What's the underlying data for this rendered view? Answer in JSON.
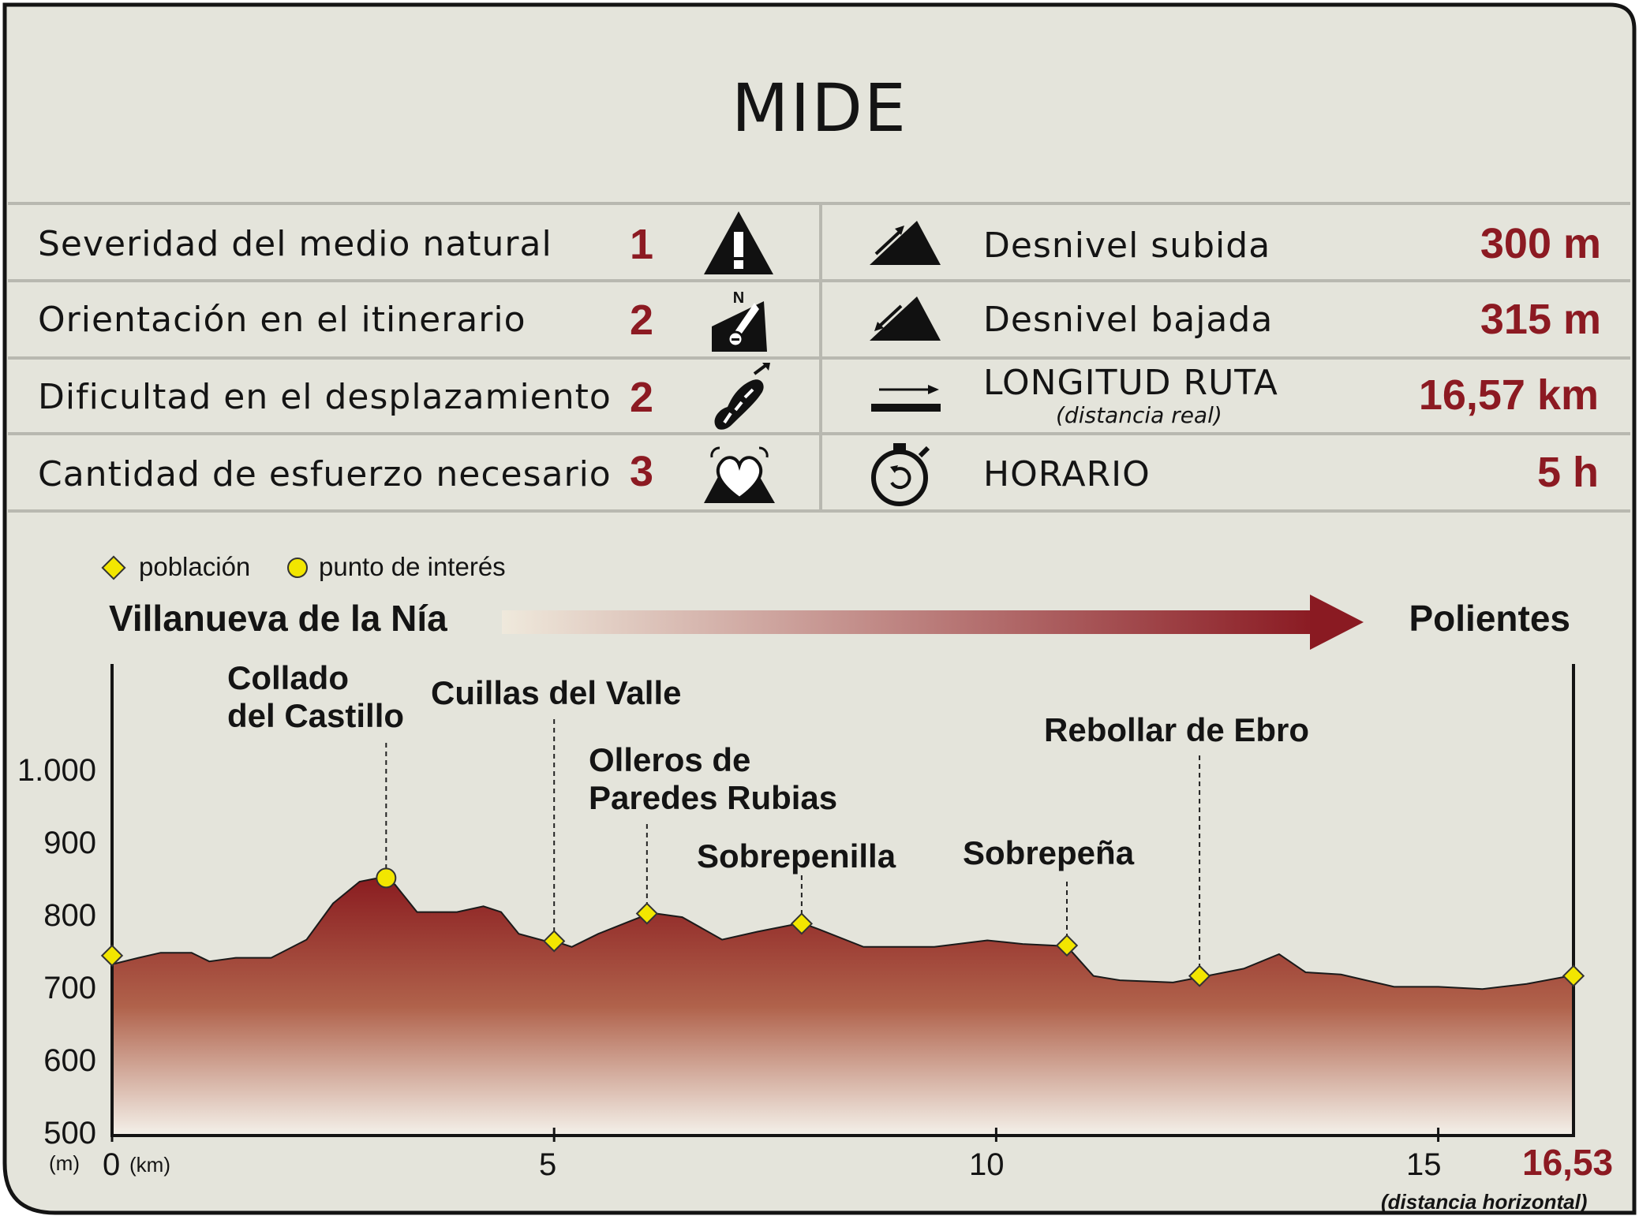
{
  "title": "MIDE",
  "mide": [
    {
      "label": "Severidad del medio natural",
      "value": "1",
      "icon": "warning-triangle-icon"
    },
    {
      "label": "Orientación en el itinerario",
      "value": "2",
      "icon": "compass-orientation-icon"
    },
    {
      "label": "Dificultad en el desplazamiento",
      "value": "2",
      "icon": "boot-print-icon"
    },
    {
      "label": "Cantidad de esfuerzo necesario",
      "value": "3",
      "icon": "heart-effort-icon"
    }
  ],
  "stats": [
    {
      "label": "Desnivel subida",
      "value": "300 m",
      "icon": "ascent-slope-icon"
    },
    {
      "label": "Desnivel bajada",
      "value": "315 m",
      "icon": "descent-slope-icon"
    },
    {
      "label": "LONGITUD RUTA",
      "sublabel": "(distancia real)",
      "value": "16,57 km",
      "icon": "distance-arrow-icon"
    },
    {
      "label": "HORARIO",
      "value": "5 h",
      "icon": "stopwatch-icon"
    }
  ],
  "legend": {
    "town": "población",
    "poi": "punto de interés"
  },
  "route": {
    "start": "Villanueva de la Nía",
    "end": "Polientes"
  },
  "colors": {
    "background": "#e4e4db",
    "accent": "#8c1a22",
    "marker": "#f2e600",
    "fill_top": "#8a1c20",
    "fill_bottom": "#f2efe6"
  },
  "chart_data": {
    "type": "area",
    "xlabel": "(km)",
    "ylabel": "(m)",
    "xlim": [
      0,
      16.53
    ],
    "ylim": [
      500,
      1000
    ],
    "x_ticks": [
      "0",
      "5",
      "10",
      "15"
    ],
    "x_tick_values": [
      0,
      5,
      10,
      15
    ],
    "x_end_label": "16,53",
    "x_end_note": "(distancia horizontal)",
    "y_ticks": [
      "500",
      "600",
      "700",
      "800",
      "900",
      "1.000"
    ],
    "y_tick_values": [
      500,
      600,
      700,
      800,
      900,
      1000
    ],
    "profile": {
      "x": [
        0,
        0.3,
        0.55,
        0.9,
        1.1,
        1.4,
        1.8,
        2.2,
        2.5,
        2.8,
        3.05,
        3.2,
        3.45,
        3.6,
        3.9,
        4.2,
        4.4,
        4.6,
        4.9,
        5.0,
        5.2,
        5.5,
        5.85,
        6.1,
        6.45,
        6.9,
        7.3,
        7.8,
        8.0,
        8.5,
        9.3,
        9.9,
        10.3,
        10.8,
        11.1,
        11.4,
        12.0,
        12.3,
        12.8,
        13.2,
        13.5,
        13.9,
        14.5,
        15.0,
        15.5,
        16.0,
        16.53
      ],
      "y": [
        736,
        745,
        752,
        752,
        740,
        745,
        745,
        770,
        820,
        850,
        856,
        846,
        808,
        808,
        808,
        816,
        808,
        778,
        768,
        768,
        760,
        778,
        795,
        807,
        801,
        770,
        781,
        793,
        784,
        760,
        760,
        769,
        764,
        761,
        720,
        714,
        711,
        718,
        730,
        750,
        725,
        722,
        705,
        705,
        702,
        709,
        721
      ]
    },
    "points": [
      {
        "name": "",
        "type": "town",
        "x": 0.0,
        "y": 748
      },
      {
        "name": "Collado\ndel Castillo",
        "type": "poi",
        "x": 3.1,
        "y": 855
      },
      {
        "name": "Cuillas del Valle",
        "type": "town",
        "x": 5.0,
        "y": 768
      },
      {
        "name": "Olleros de\nParedes Rubias",
        "type": "town",
        "x": 6.05,
        "y": 806
      },
      {
        "name": "Sobrepenilla",
        "type": "town",
        "x": 7.8,
        "y": 792
      },
      {
        "name": "Sobrepeña",
        "type": "town",
        "x": 10.8,
        "y": 762
      },
      {
        "name": "Rebollar de Ebro",
        "type": "town",
        "x": 12.3,
        "y": 720
      },
      {
        "name": "",
        "type": "town",
        "x": 16.53,
        "y": 720
      }
    ]
  }
}
